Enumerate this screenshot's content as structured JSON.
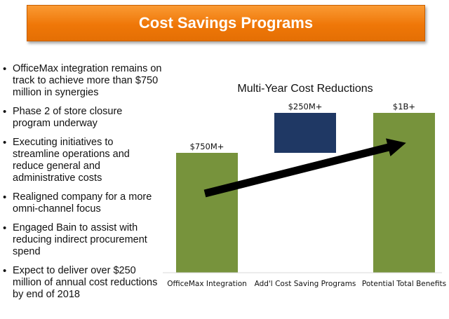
{
  "header": {
    "title": "Cost Savings Programs"
  },
  "bullets": [
    "OfficeMax integration remains on track to achieve more than $750 million in synergies",
    "Phase 2 of store closure program underway",
    "Executing initiatives to streamline operations and reduce general and administrative costs",
    "Realigned company for a more omni-channel focus",
    "Engaged Bain to assist with reducing indirect procurement spend",
    "Expect to deliver over $250 million of annual cost reductions by end of 2018"
  ],
  "chart_data": {
    "type": "bar",
    "title": "Multi-Year Cost Reductions",
    "categories": [
      "OfficeMax Integration",
      "Add'l Cost Saving Programs",
      "Potential Total Benefits"
    ],
    "data_labels": [
      "$750M+",
      "$250M+",
      "$1B+"
    ],
    "values": [
      750,
      250,
      1000
    ],
    "bases": [
      0,
      750,
      0
    ],
    "colors": [
      "#77933c",
      "#1f3864",
      "#77933c"
    ],
    "ylim": [
      0,
      1000
    ],
    "grid": false,
    "legend": "none"
  }
}
